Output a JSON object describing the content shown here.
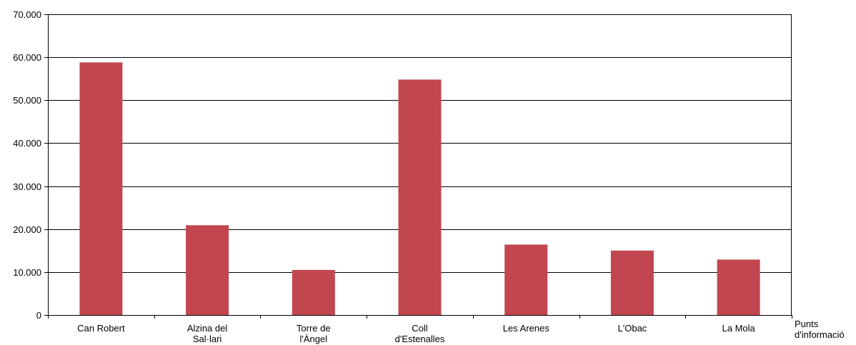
{
  "chart_data": {
    "type": "bar",
    "categories": [
      [
        "Can Robert"
      ],
      [
        "Alzina del",
        "Sal·lari"
      ],
      [
        "Torre de",
        "l'Àngel"
      ],
      [
        "Coll",
        "d'Estenalles"
      ],
      [
        "Les Arenes"
      ],
      [
        "L'Obac"
      ],
      [
        "La Mola"
      ]
    ],
    "values": [
      58800,
      20900,
      10500,
      54800,
      16400,
      15000,
      12900
    ],
    "ylim": [
      0,
      70000
    ],
    "yticks": [
      {
        "value": 0,
        "label": "0"
      },
      {
        "value": 10000,
        "label": "10.000"
      },
      {
        "value": 20000,
        "label": "20.000"
      },
      {
        "value": 30000,
        "label": "30.000"
      },
      {
        "value": 40000,
        "label": "40.000"
      },
      {
        "value": 50000,
        "label": "50.000"
      },
      {
        "value": 60000,
        "label": "60.000"
      },
      {
        "value": 70000,
        "label": "70.000"
      }
    ],
    "xlabel": [
      "Punts",
      "d'informació"
    ],
    "grid": true,
    "bar_color": "#c1464f"
  }
}
